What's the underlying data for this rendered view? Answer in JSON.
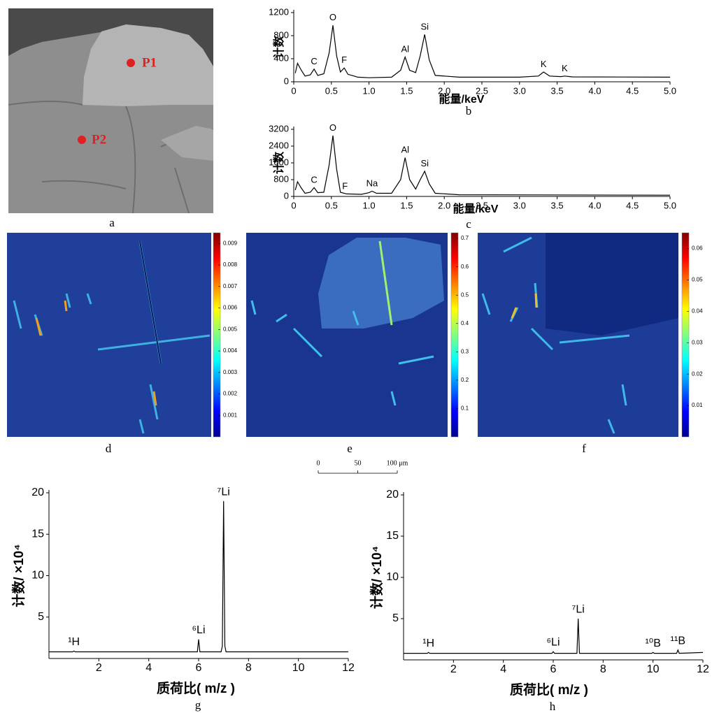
{
  "image_a": {
    "panel_label": "a",
    "points": [
      {
        "label": "P1"
      },
      {
        "label": "P2"
      }
    ]
  },
  "colormap": [
    "#00008f",
    "#0000ff",
    "#0080ff",
    "#00ffff",
    "#80ff80",
    "#ffff00",
    "#ff8000",
    "#ff0000",
    "#800000"
  ],
  "maps": [
    {
      "panel_label": "d",
      "colorbar": {
        "lim": [
          0,
          0.0095
        ],
        "ticks": [
          0.001,
          0.002,
          0.003,
          0.004,
          0.005,
          0.006,
          0.007,
          0.008,
          0.009
        ]
      }
    },
    {
      "panel_label": "e",
      "colorbar": {
        "lim": [
          0,
          0.72
        ],
        "ticks": [
          0.1,
          0.2,
          0.3,
          0.4,
          0.5,
          0.6,
          0.7
        ]
      }
    },
    {
      "panel_label": "f",
      "colorbar": {
        "lim": [
          0,
          0.065
        ],
        "ticks": [
          0.01,
          0.02,
          0.03,
          0.04,
          0.05,
          0.06
        ]
      }
    }
  ],
  "scale_bar": {
    "lim": [
      0,
      100
    ],
    "ticks": [
      0,
      50,
      {
        "value": 100,
        "label": "100 μm"
      }
    ]
  },
  "chart_data": [
    {
      "type": "line",
      "panel_label": "b",
      "x_label": "能量/keV",
      "y_label": "计数",
      "color": "#000000",
      "xlim": [
        0,
        5
      ],
      "ylim": [
        0,
        1200
      ],
      "xticks": [
        0,
        0.5,
        {
          "value": 1,
          "label": "1.0"
        },
        1.5,
        {
          "value": 2,
          "label": "2.0"
        },
        2.5,
        {
          "value": 3,
          "label": "3.0"
        },
        3.5,
        {
          "value": 4,
          "label": "4.0"
        },
        4.5,
        {
          "value": 5,
          "label": "5.0"
        }
      ],
      "yticks": [
        0,
        400,
        800,
        1200
      ],
      "x": [
        0.02,
        0.05,
        0.1,
        0.15,
        0.22,
        0.27,
        0.32,
        0.4,
        0.47,
        0.52,
        0.57,
        0.62,
        0.67,
        0.72,
        0.85,
        1.0,
        1.3,
        1.42,
        1.48,
        1.54,
        1.62,
        1.68,
        1.74,
        1.8,
        1.88,
        2.2,
        3.0,
        3.25,
        3.32,
        3.4,
        3.55,
        3.6,
        3.7,
        5.0
      ],
      "values": [
        150,
        320,
        200,
        100,
        120,
        220,
        110,
        140,
        500,
        980,
        450,
        170,
        240,
        130,
        80,
        70,
        80,
        200,
        430,
        200,
        160,
        450,
        820,
        380,
        110,
        80,
        80,
        100,
        170,
        100,
        90,
        100,
        85,
        80
      ],
      "annotations": [
        {
          "text": "C",
          "x": 0.27
        },
        {
          "text": "O",
          "x": 0.52
        },
        {
          "text": "F",
          "x": 0.67
        },
        {
          "text": "Al",
          "x": 1.48
        },
        {
          "text": "Si",
          "x": 1.74
        },
        {
          "text": "K",
          "x": 3.32
        },
        {
          "text": "K",
          "x": 3.6
        }
      ]
    },
    {
      "type": "line",
      "panel_label": "c",
      "x_label": "能量/keV",
      "y_label": "计数",
      "color": "#000000",
      "xlim": [
        0,
        5
      ],
      "ylim": [
        0,
        3200
      ],
      "xticks": [
        0,
        0.5,
        {
          "value": 1,
          "label": "1.0"
        },
        1.5,
        {
          "value": 2,
          "label": "2.0"
        },
        2.5,
        {
          "value": 3,
          "label": "3.0"
        },
        3.5,
        {
          "value": 4,
          "label": "4.0"
        },
        4.5,
        {
          "value": 5,
          "label": "5.0"
        }
      ],
      "yticks": [
        0,
        800,
        1600,
        2400,
        3200
      ],
      "x": [
        0.02,
        0.05,
        0.1,
        0.15,
        0.22,
        0.27,
        0.32,
        0.4,
        0.47,
        0.52,
        0.57,
        0.62,
        0.7,
        0.9,
        1.0,
        1.04,
        1.1,
        1.3,
        1.42,
        1.48,
        1.54,
        1.62,
        1.68,
        1.74,
        1.8,
        1.88,
        2.2,
        5.0
      ],
      "values": [
        300,
        700,
        400,
        150,
        200,
        420,
        180,
        200,
        1500,
        2900,
        1300,
        200,
        120,
        100,
        180,
        250,
        150,
        150,
        800,
        1850,
        800,
        350,
        800,
        1200,
        600,
        150,
        80,
        60
      ],
      "annotations": [
        {
          "text": "C",
          "x": 0.27
        },
        {
          "text": "O",
          "x": 0.52
        },
        {
          "text": "F",
          "x": 0.68
        },
        {
          "text": "Na",
          "x": 1.04
        },
        {
          "text": "Al",
          "x": 1.48
        },
        {
          "text": "Si",
          "x": 1.74
        }
      ]
    },
    {
      "type": "line",
      "panel_label": "g",
      "x_label": "质荷比( m/z )",
      "y_label": "计数/ ×10⁴",
      "color": "#000000",
      "xlim": [
        0,
        12
      ],
      "ylim": [
        0,
        20
      ],
      "xticks": [
        2,
        4,
        6,
        8,
        10,
        12
      ],
      "yticks": [
        5,
        10,
        15,
        20
      ],
      "x": [
        0,
        0.95,
        1,
        1.05,
        5.95,
        6,
        6.05,
        6.9,
        6.95,
        7,
        7.05,
        7.1,
        12
      ],
      "values": [
        0.8,
        0.8,
        0.9,
        0.8,
        0.8,
        2.3,
        0.8,
        0.8,
        1.5,
        19,
        1.5,
        0.8,
        0.8
      ],
      "annotations": [
        {
          "text": "¹H",
          "x": 1
        },
        {
          "text": "⁶Li",
          "x": 6
        },
        {
          "text": "⁷Li",
          "x": 7
        }
      ]
    },
    {
      "type": "line",
      "panel_label": "h",
      "x_label": "质荷比( m/z )",
      "y_label": "计数/ ×10⁴",
      "color": "#000000",
      "xlim": [
        0,
        12
      ],
      "ylim": [
        0,
        20
      ],
      "xticks": [
        2,
        4,
        6,
        8,
        10,
        12
      ],
      "yticks": [
        5,
        10,
        15,
        20
      ],
      "x": [
        0,
        0.95,
        1,
        1.05,
        5.95,
        6,
        6.05,
        6.95,
        7,
        7.05,
        9.95,
        10,
        10.05,
        10.95,
        11,
        11.05,
        12
      ],
      "values": [
        0.8,
        0.8,
        0.9,
        0.8,
        0.8,
        1.0,
        0.8,
        0.8,
        5,
        0.8,
        0.8,
        0.9,
        0.8,
        0.8,
        1.2,
        0.8,
        0.9
      ],
      "annotations": [
        {
          "text": "¹H",
          "x": 1
        },
        {
          "text": "⁶Li",
          "x": 6
        },
        {
          "text": "⁷Li",
          "x": 7
        },
        {
          "text": "¹⁰B",
          "x": 10
        },
        {
          "text": "¹¹B",
          "x": 11
        }
      ]
    }
  ]
}
